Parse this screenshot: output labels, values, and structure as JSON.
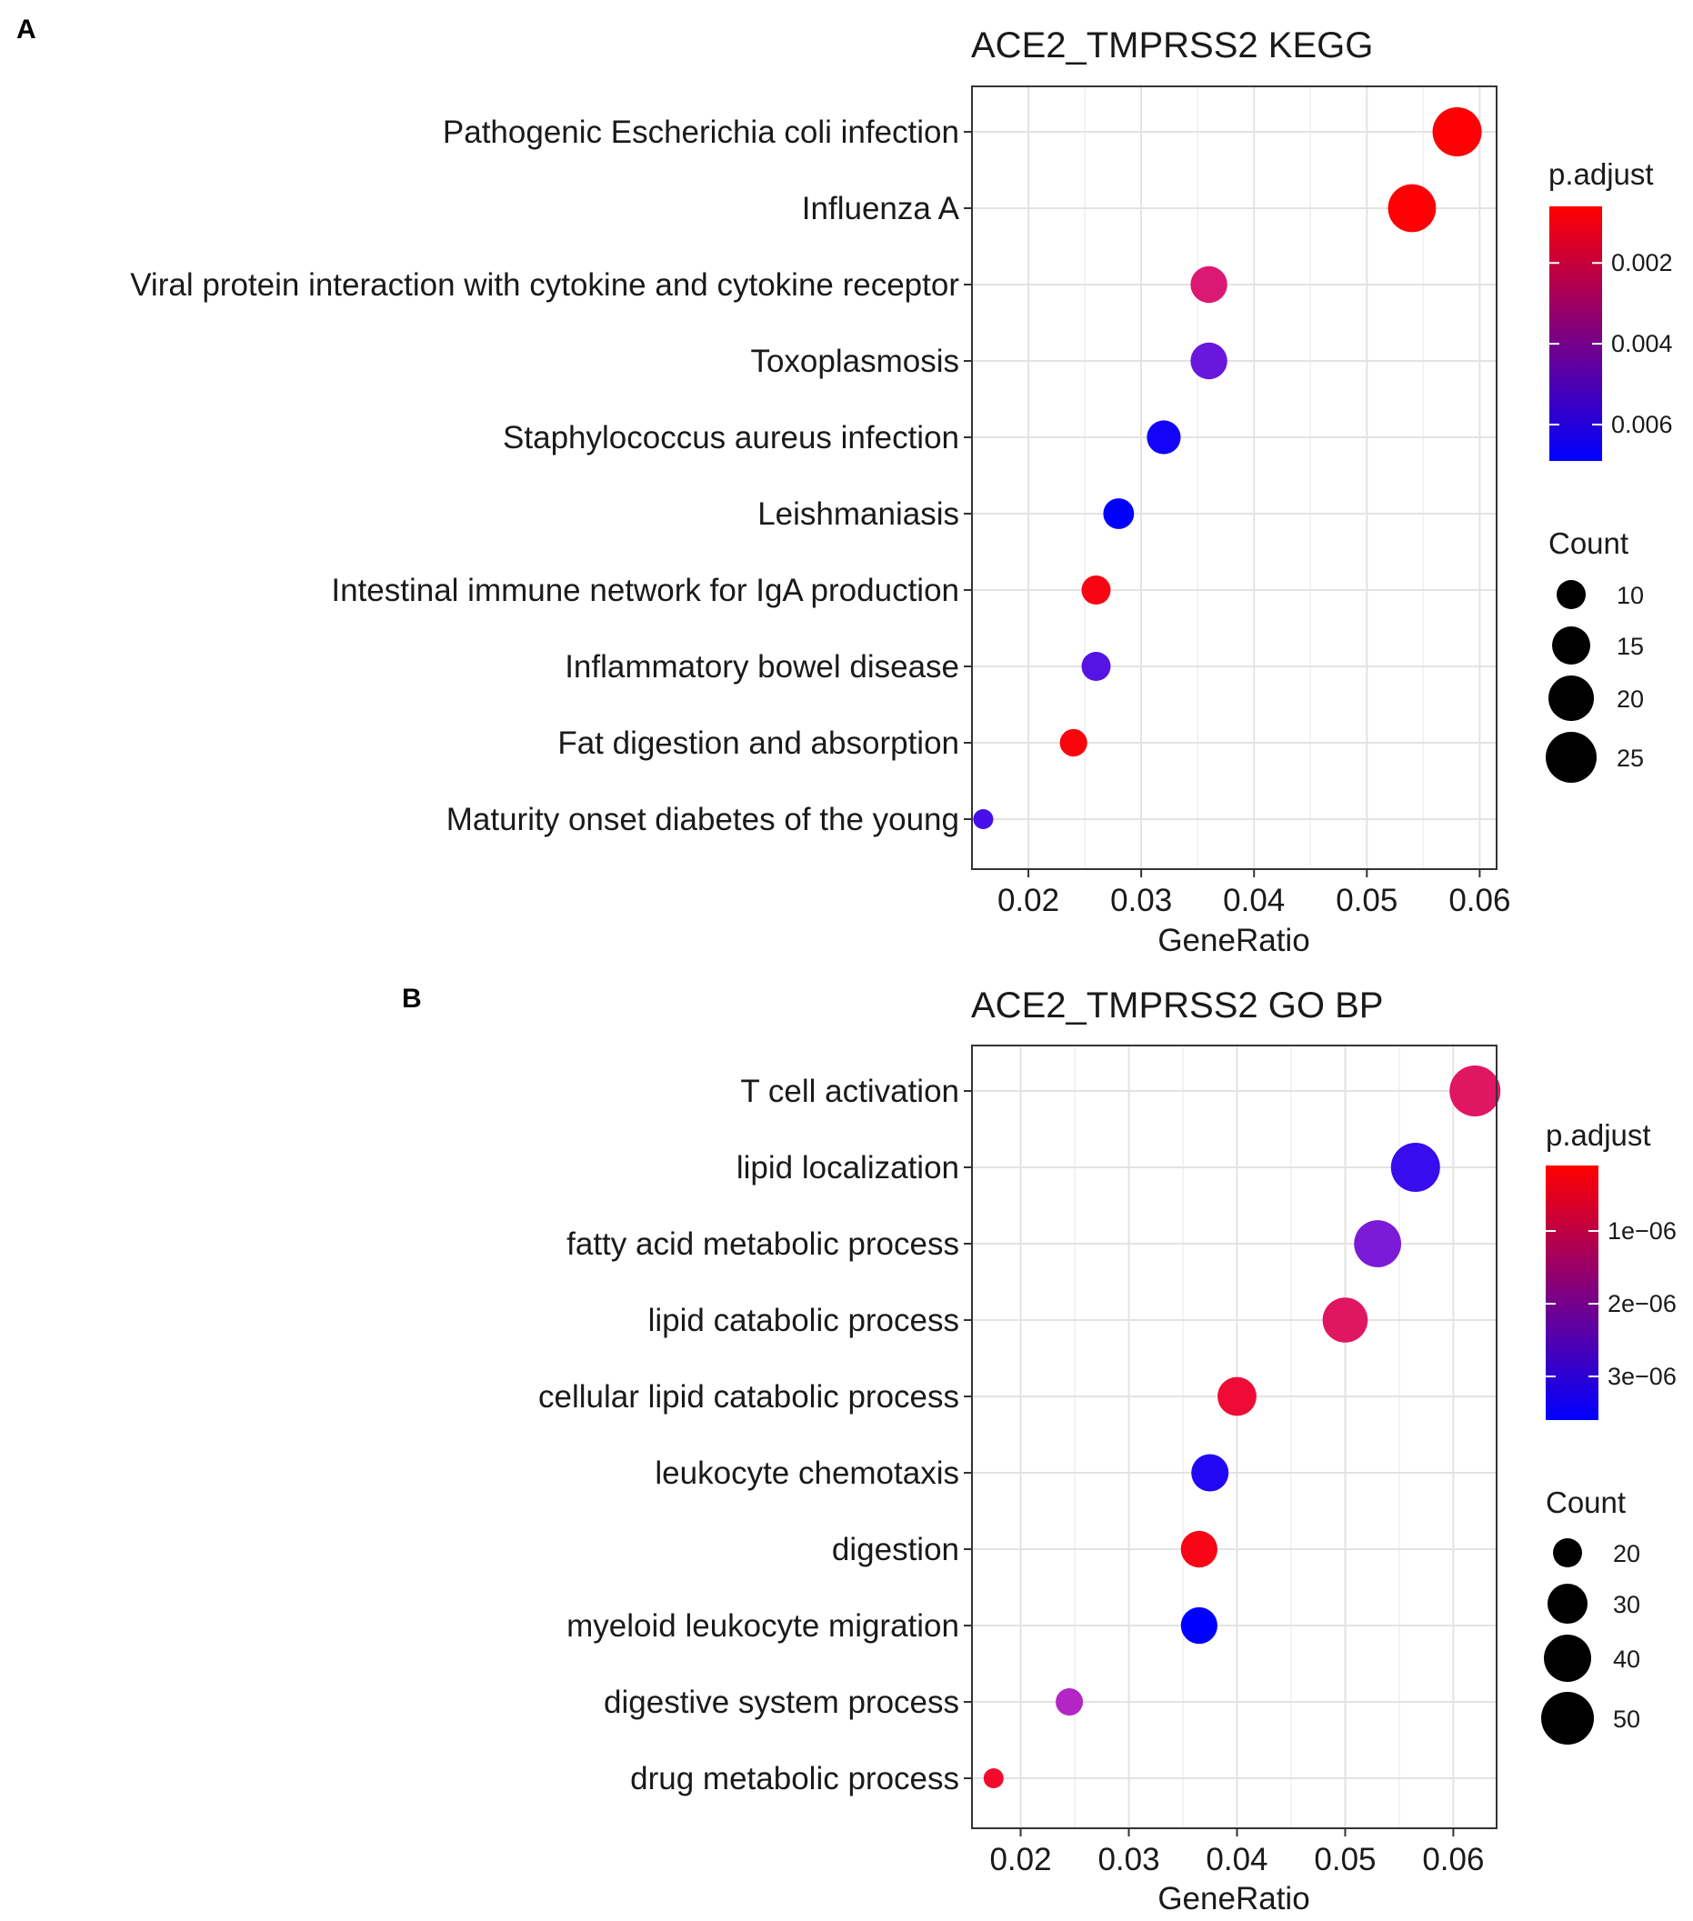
{
  "chart_data": [
    {
      "type": "scatter",
      "panel": "A",
      "title": "ACE2_TMPRSS2 KEGG",
      "xlabel": "GeneRatio",
      "ylabel": "",
      "xlim": [
        0.015,
        0.0615
      ],
      "xticks": [
        0.02,
        0.03,
        0.04,
        0.05,
        0.06
      ],
      "xtick_labels": [
        "0.02",
        "0.03",
        "0.04",
        "0.05",
        "0.06"
      ],
      "grid": true,
      "categories": [
        "Pathogenic Escherichia coli infection",
        "Influenza A",
        "Viral protein interaction with cytokine and cytokine receptor",
        "Toxoplasmosis",
        "Staphylococcus aureus infection",
        "Leishmaniasis",
        "Intestinal immune network for IgA production",
        "Inflammatory bowel disease",
        "Fat digestion and absorption",
        "Maturity onset diabetes of the young"
      ],
      "points": [
        {
          "term": "Pathogenic Escherichia coli infection",
          "gene_ratio": 0.058,
          "count": 28,
          "p_adjust": 0.0007
        },
        {
          "term": "Influenza A",
          "gene_ratio": 0.054,
          "count": 27,
          "p_adjust": 0.0007
        },
        {
          "term": "Viral protein interaction with cytokine and cytokine receptor",
          "gene_ratio": 0.036,
          "count": 18,
          "p_adjust": 0.0025
        },
        {
          "term": "Toxoplasmosis",
          "gene_ratio": 0.036,
          "count": 18,
          "p_adjust": 0.0052
        },
        {
          "term": "Staphylococcus aureus infection",
          "gene_ratio": 0.032,
          "count": 16,
          "p_adjust": 0.0066
        },
        {
          "term": "Leishmaniasis",
          "gene_ratio": 0.028,
          "count": 14,
          "p_adjust": 0.0069
        },
        {
          "term": "Intestinal immune network for IgA production",
          "gene_ratio": 0.026,
          "count": 13,
          "p_adjust": 0.0009
        },
        {
          "term": "Inflammatory bowel disease",
          "gene_ratio": 0.026,
          "count": 13,
          "p_adjust": 0.0055
        },
        {
          "term": "Fat digestion and absorption",
          "gene_ratio": 0.024,
          "count": 12,
          "p_adjust": 0.0008
        },
        {
          "term": "Maturity onset diabetes of the young",
          "gene_ratio": 0.016,
          "count": 8,
          "p_adjust": 0.0058
        }
      ],
      "color_legend": {
        "title": "p.adjust",
        "ticks": [
          0.002,
          0.004,
          0.006
        ],
        "tick_labels": [
          "0.002",
          "0.004",
          "0.006"
        ],
        "range": [
          0.0006,
          0.0069
        ],
        "low_color": "#ff0000",
        "high_color": "#0000ff"
      },
      "size_legend": {
        "title": "Count",
        "values": [
          10,
          15,
          20,
          25
        ],
        "labels": [
          "10",
          "15",
          "20",
          "25"
        ],
        "count_range": [
          8,
          28
        ]
      },
      "legend_position": "right"
    },
    {
      "type": "scatter",
      "panel": "B",
      "title": "ACE2_TMPRSS2 GO BP",
      "xlabel": "GeneRatio",
      "ylabel": "",
      "xlim": [
        0.0155,
        0.064
      ],
      "xticks": [
        0.02,
        0.03,
        0.04,
        0.05,
        0.06
      ],
      "xtick_labels": [
        "0.02",
        "0.03",
        "0.04",
        "0.05",
        "0.06"
      ],
      "grid": true,
      "categories": [
        "T cell activation",
        "lipid localization",
        "fatty acid metabolic process",
        "lipid catabolic process",
        "cellular lipid catabolic process",
        "leukocyte chemotaxis",
        "digestion",
        "myeloid leukocyte migration",
        "digestive system process",
        "drug metabolic process"
      ],
      "points": [
        {
          "term": "T cell activation",
          "gene_ratio": 0.062,
          "count": 55,
          "p_adjust": 1e-06
        },
        {
          "term": "lipid localization",
          "gene_ratio": 0.0565,
          "count": 52,
          "p_adjust": 3.1e-06
        },
        {
          "term": "fatty acid metabolic process",
          "gene_ratio": 0.053,
          "count": 49,
          "p_adjust": 2.5e-06
        },
        {
          "term": "lipid catabolic process",
          "gene_ratio": 0.05,
          "count": 46,
          "p_adjust": 1e-06
        },
        {
          "term": "cellular lipid catabolic process",
          "gene_ratio": 0.04,
          "count": 37,
          "p_adjust": 6e-07
        },
        {
          "term": "leukocyte chemotaxis",
          "gene_ratio": 0.0375,
          "count": 35,
          "p_adjust": 3.3e-06
        },
        {
          "term": "digestion",
          "gene_ratio": 0.0365,
          "count": 34,
          "p_adjust": 3e-07
        },
        {
          "term": "myeloid leukocyte migration",
          "gene_ratio": 0.0365,
          "count": 34,
          "p_adjust": 3.6e-06
        },
        {
          "term": "digestive system process",
          "gene_ratio": 0.0245,
          "count": 23,
          "p_adjust": 2e-06
        },
        {
          "term": "drug metabolic process",
          "gene_ratio": 0.0175,
          "count": 16,
          "p_adjust": 5e-07
        }
      ],
      "color_legend": {
        "title": "p.adjust",
        "ticks": [
          1e-06,
          2e-06,
          3e-06
        ],
        "tick_labels": [
          "1e−06",
          "2e−06",
          "3e−06"
        ],
        "range": [
          1e-07,
          3.6e-06
        ],
        "low_color": "#ff0000",
        "high_color": "#0000ff"
      },
      "size_legend": {
        "title": "Count",
        "values": [
          20,
          30,
          40,
          50
        ],
        "labels": [
          "20",
          "30",
          "40",
          "50"
        ],
        "count_range": [
          16,
          55
        ]
      },
      "legend_position": "right"
    }
  ]
}
